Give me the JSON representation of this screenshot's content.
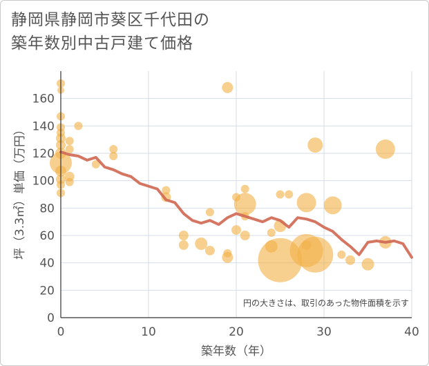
{
  "chart_data": {
    "type": "scatter",
    "title": [
      "静岡県静岡市葵区千代田の",
      "築年数別中古戸建て価格"
    ],
    "xlabel": "築年数（年）",
    "ylabel": "坪（3.3㎡）単価（万円）",
    "xlim": [
      0,
      40
    ],
    "ylim": [
      0,
      180
    ],
    "xticks": [
      0,
      10,
      20,
      30,
      40
    ],
    "yticks": [
      0,
      20,
      40,
      60,
      80,
      100,
      120,
      140,
      160
    ],
    "note": "円の大きさは、取引のあった物件面積を示す",
    "colors": {
      "bubble": "#f2b24a",
      "line": "#d06a55",
      "grid": "#d4dde6"
    },
    "points": [
      {
        "x": 0,
        "y": 171,
        "s": 6
      },
      {
        "x": 0,
        "y": 166,
        "s": 5
      },
      {
        "x": 0,
        "y": 147,
        "s": 6
      },
      {
        "x": 0,
        "y": 139,
        "s": 6
      },
      {
        "x": 0,
        "y": 135,
        "s": 6
      },
      {
        "x": 0,
        "y": 131,
        "s": 7
      },
      {
        "x": 0,
        "y": 126,
        "s": 7
      },
      {
        "x": 0,
        "y": 120,
        "s": 8
      },
      {
        "x": 0,
        "y": 113,
        "s": 16
      },
      {
        "x": 0,
        "y": 107,
        "s": 8
      },
      {
        "x": 0,
        "y": 101,
        "s": 7
      },
      {
        "x": 0,
        "y": 97,
        "s": 6
      },
      {
        "x": 0,
        "y": 91,
        "s": 6
      },
      {
        "x": 1,
        "y": 129,
        "s": 6
      },
      {
        "x": 1,
        "y": 123,
        "s": 6
      },
      {
        "x": 1,
        "y": 103,
        "s": 7
      },
      {
        "x": 1,
        "y": 99,
        "s": 6
      },
      {
        "x": 2,
        "y": 140,
        "s": 6
      },
      {
        "x": 4,
        "y": 112,
        "s": 6
      },
      {
        "x": 6,
        "y": 123,
        "s": 6
      },
      {
        "x": 6,
        "y": 118,
        "s": 6
      },
      {
        "x": 12,
        "y": 93,
        "s": 6
      },
      {
        "x": 12,
        "y": 88,
        "s": 7
      },
      {
        "x": 14,
        "y": 60,
        "s": 7
      },
      {
        "x": 14,
        "y": 53,
        "s": 7
      },
      {
        "x": 16,
        "y": 54,
        "s": 9
      },
      {
        "x": 17,
        "y": 77,
        "s": 6
      },
      {
        "x": 17,
        "y": 49,
        "s": 7
      },
      {
        "x": 19,
        "y": 168,
        "s": 8
      },
      {
        "x": 19,
        "y": 47,
        "s": 6
      },
      {
        "x": 19,
        "y": 44,
        "s": 8
      },
      {
        "x": 20,
        "y": 88,
        "s": 6
      },
      {
        "x": 20,
        "y": 64,
        "s": 7
      },
      {
        "x": 21,
        "y": 94,
        "s": 6
      },
      {
        "x": 21,
        "y": 83,
        "s": 16
      },
      {
        "x": 21,
        "y": 74,
        "s": 6
      },
      {
        "x": 21,
        "y": 60,
        "s": 7
      },
      {
        "x": 24,
        "y": 62,
        "s": 6
      },
      {
        "x": 24,
        "y": 52,
        "s": 9
      },
      {
        "x": 25,
        "y": 90,
        "s": 6
      },
      {
        "x": 25,
        "y": 67,
        "s": 9
      },
      {
        "x": 25,
        "y": 42,
        "s": 32
      },
      {
        "x": 26,
        "y": 90,
        "s": 6
      },
      {
        "x": 28,
        "y": 84,
        "s": 14
      },
      {
        "x": 28,
        "y": 53,
        "s": 7
      },
      {
        "x": 28,
        "y": 49,
        "s": 24
      },
      {
        "x": 29,
        "y": 46,
        "s": 26
      },
      {
        "x": 29,
        "y": 126,
        "s": 11
      },
      {
        "x": 31,
        "y": 82,
        "s": 13
      },
      {
        "x": 32,
        "y": 46,
        "s": 6
      },
      {
        "x": 33,
        "y": 42,
        "s": 7
      },
      {
        "x": 35,
        "y": 39,
        "s": 9
      },
      {
        "x": 37,
        "y": 123,
        "s": 14
      },
      {
        "x": 37,
        "y": 55,
        "s": 9
      }
    ],
    "series": [
      {
        "name": "trend",
        "x": [
          0,
          1,
          2,
          3,
          4,
          5,
          6,
          7,
          8,
          9,
          10,
          11,
          12,
          13,
          14,
          15,
          16,
          17,
          18,
          19,
          20,
          21,
          22,
          23,
          24,
          25,
          26,
          27,
          28,
          29,
          30,
          31,
          32,
          33,
          34,
          35,
          36,
          37,
          38,
          39,
          40
        ],
        "y": [
          121,
          119,
          118,
          115,
          117,
          110,
          108,
          105,
          103,
          98,
          96,
          94,
          86,
          84,
          76,
          71,
          69,
          71,
          68,
          73,
          76,
          74,
          72,
          70,
          73,
          71,
          66,
          73,
          72,
          70,
          66,
          63,
          57,
          52,
          46,
          55,
          56,
          55,
          56,
          54,
          44
        ]
      }
    ]
  }
}
